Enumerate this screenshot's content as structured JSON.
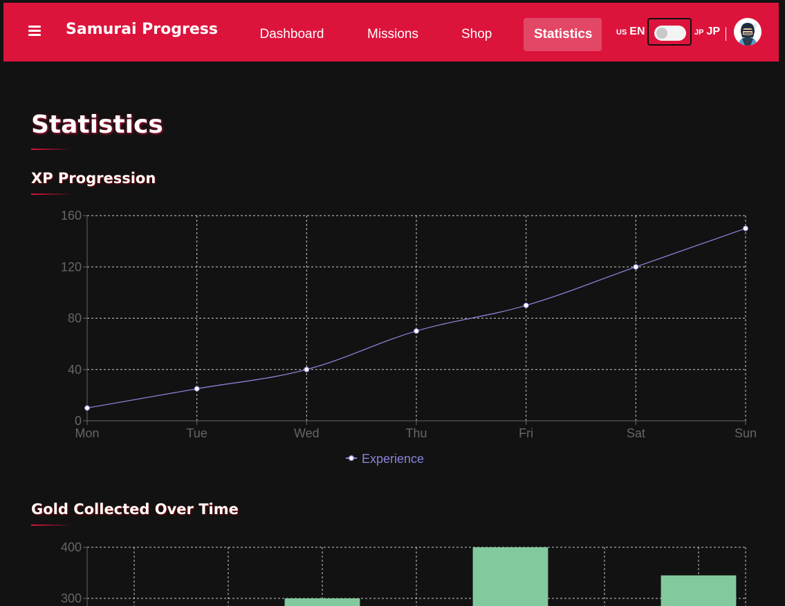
{
  "navbar": {
    "brand": "Samurai Progress",
    "links": [
      {
        "label": "Dashboard"
      },
      {
        "label": "Missions"
      },
      {
        "label": "Shop"
      },
      {
        "label": "Statistics",
        "active": true
      }
    ],
    "lang_left": {
      "flag": "US",
      "code": "EN"
    },
    "lang_right": {
      "flag": "JP",
      "code": "JP"
    },
    "toggle_on": false,
    "accent": "#dc143c"
  },
  "page": {
    "title": "Statistics"
  },
  "xp_section": {
    "title": "XP Progression"
  },
  "gold_section": {
    "title": "Gold Collected Over Time"
  },
  "chart_data": [
    {
      "type": "line",
      "x": [
        "Mon",
        "Tue",
        "Wed",
        "Thu",
        "Fri",
        "Sat",
        "Sun"
      ],
      "series": [
        {
          "name": "Experience",
          "values": [
            10,
            25,
            40,
            70,
            90,
            120,
            150
          ],
          "color": "#8884d8"
        }
      ],
      "ylim": [
        0,
        160
      ],
      "yticks": [
        0,
        40,
        80,
        120,
        160
      ],
      "grid": true,
      "legend": "bottom-center"
    },
    {
      "type": "bar",
      "categories": [
        "",
        "",
        "",
        "",
        "",
        "",
        ""
      ],
      "values": [
        null,
        null,
        300,
        null,
        400,
        null,
        345
      ],
      "color": "#82ca9d",
      "yticks": [
        300,
        400
      ],
      "grid": true
    }
  ]
}
